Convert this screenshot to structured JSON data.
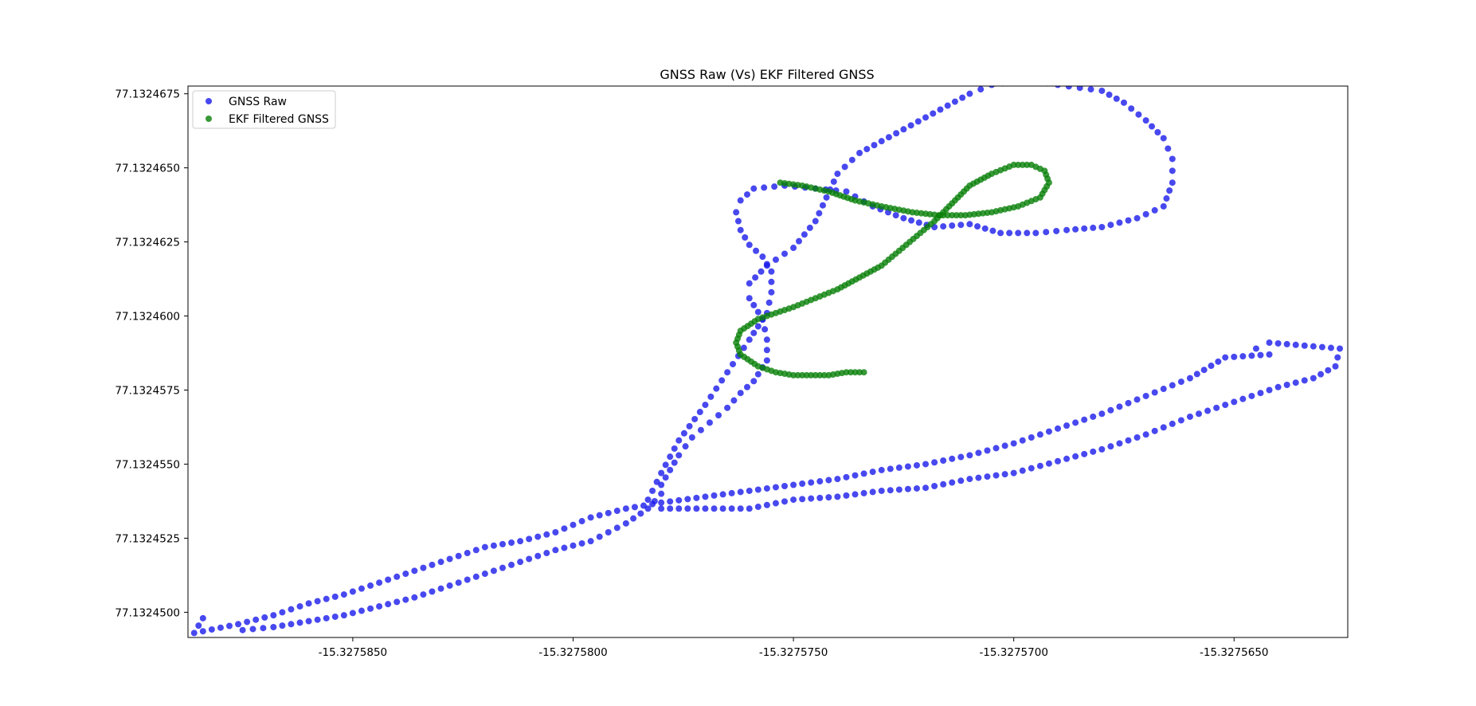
{
  "chart_data": {
    "type": "scatter",
    "title": "GNSS Raw (Vs) EKF Filtered GNSS",
    "xlabel": "",
    "ylabel": "",
    "xlim": [
      -15.32758874,
      -15.32756242
    ],
    "ylim": [
      77.13244915,
      77.13246776
    ],
    "x_ticks": [
      -15.327585,
      -15.32758,
      -15.327575,
      -15.32757,
      -15.327565
    ],
    "x_tick_labels": [
      "-15.3275850",
      "-15.3275800",
      "-15.3275750",
      "-15.3275700",
      "-15.3275650"
    ],
    "y_ticks": [
      77.13245,
      77.1324525,
      77.132455,
      77.1324575,
      77.13246,
      77.1324625,
      77.132465,
      77.1324675
    ],
    "y_tick_labels": [
      "77.1324500",
      "77.1324525",
      "77.1324550",
      "77.1324575",
      "77.1324600",
      "77.1324625",
      "77.1324650",
      "77.1324675"
    ],
    "grid": false,
    "legend_position": "top-left",
    "series": [
      {
        "name": "GNSS Raw",
        "color": "#1a1aeb",
        "x": [
          -15.3275875,
          -15.3275868,
          -15.327586,
          -15.3275852,
          -15.3275844,
          -15.3275836,
          -15.3275828,
          -15.327582,
          -15.3275812,
          -15.3275804,
          -15.3275796,
          -15.3275788,
          -15.3275783,
          -15.327578,
          -15.327578,
          -15.3275778,
          -15.3275776,
          -15.3275773,
          -15.3275769,
          -15.3275765,
          -15.3275762,
          -15.3275759,
          -15.3275756,
          -15.3275756,
          -15.3275757,
          -15.327576,
          -15.327576,
          -15.3275756,
          -15.327575,
          -15.3275745,
          -15.327574,
          -15.3275735,
          -15.327573,
          -15.3275725,
          -15.327572,
          -15.3275715,
          -15.327571,
          -15.3275705,
          -15.32757,
          -15.3275695,
          -15.327569,
          -15.3275685,
          -15.327568,
          -15.3275675,
          -15.327567,
          -15.3275666,
          -15.3275664,
          -15.3275664,
          -15.3275666,
          -15.3275672,
          -15.327568,
          -15.3275688,
          -15.3275695,
          -15.3275703,
          -15.327571,
          -15.3275718,
          -15.3275725,
          -15.3275732,
          -15.3275738,
          -15.3275745,
          -15.3275752,
          -15.3275759,
          -15.3275762,
          -15.3275763,
          -15.3275762,
          -15.327576,
          -15.3275757,
          -15.3275755,
          -15.3275755,
          -15.3275756,
          -15.327576,
          -15.3275765,
          -15.327577,
          -15.3275776,
          -15.327578,
          -15.3275783,
          -15.327578,
          -15.327577,
          -15.327576,
          -15.327575,
          -15.327574,
          -15.327573,
          -15.327572,
          -15.327571,
          -15.32757,
          -15.327569,
          -15.327568,
          -15.327567,
          -15.327566,
          -15.327565,
          -15.327564,
          -15.3275632,
          -15.3275627,
          -15.3275626,
          -15.3275634,
          -15.3275642,
          -15.3275645,
          -15.3275642,
          -15.3275652,
          -15.327566,
          -15.327567,
          -15.327568,
          -15.327569,
          -15.32757,
          -15.327571,
          -15.327572,
          -15.327573,
          -15.327574,
          -15.327575,
          -15.327576,
          -15.327577,
          -15.327578,
          -15.3275788,
          -15.3275796,
          -15.3275804,
          -15.3275812,
          -15.327582,
          -15.3275828,
          -15.3275836,
          -15.3275844,
          -15.3275852,
          -15.327586,
          -15.3275868,
          -15.3275876,
          -15.3275886,
          -15.3275884
        ],
        "y": [
          77.1324494,
          77.1324495,
          77.1324497,
          77.1324499,
          77.1324502,
          77.1324505,
          77.1324509,
          77.1324513,
          77.1324517,
          77.1324521,
          77.1324524,
          77.132453,
          77.1324535,
          77.132454,
          77.1324543,
          77.1324548,
          77.1324553,
          77.1324559,
          77.1324564,
          77.1324569,
          77.1324574,
          77.1324578,
          77.1324585,
          77.1324592,
          77.1324599,
          77.1324606,
          77.1324611,
          77.1324617,
          77.1324623,
          77.1324632,
          77.1324648,
          77.1324655,
          77.1324659,
          77.1324663,
          77.1324667,
          77.1324671,
          77.1324675,
          77.1324678,
          77.1324679,
          77.1324679,
          77.1324678,
          77.1324677,
          77.1324676,
          77.1324672,
          77.1324666,
          77.132466,
          77.1324653,
          77.1324645,
          77.1324637,
          77.1324633,
          77.132463,
          77.1324629,
          77.1324628,
          77.1324628,
          77.1324631,
          77.132463,
          77.1324633,
          77.1324637,
          77.1324642,
          77.1324643,
          77.1324644,
          77.1324643,
          77.1324639,
          77.1324635,
          77.1324629,
          77.1324624,
          77.132462,
          77.1324615,
          77.1324608,
          77.1324601,
          77.1324592,
          77.1324581,
          77.132457,
          77.1324558,
          77.1324547,
          77.1324538,
          77.1324535,
          77.1324535,
          77.1324535,
          77.1324538,
          77.1324539,
          77.1324541,
          77.1324542,
          77.1324545,
          77.1324547,
          77.1324551,
          77.1324555,
          77.132456,
          77.1324566,
          77.1324571,
          77.1324576,
          77.1324579,
          77.1324583,
          77.1324589,
          77.132459,
          77.1324591,
          77.1324589,
          77.1324587,
          77.1324586,
          77.1324579,
          77.1324573,
          77.1324567,
          77.1324562,
          77.1324557,
          77.1324553,
          77.132455,
          77.1324548,
          77.1324545,
          77.1324543,
          77.1324541,
          77.1324539,
          77.1324537,
          77.1324535,
          77.1324532,
          77.1324527,
          77.1324524,
          77.1324522,
          77.1324518,
          77.1324514,
          77.132451,
          77.1324506,
          77.1324503,
          77.1324499,
          77.1324496,
          77.1324493,
          77.1324498
        ]
      },
      {
        "name": "EKF Filtered GNSS",
        "color": "#078007",
        "x": [
          -15.3275734,
          -15.3275738,
          -15.3275742,
          -15.3275746,
          -15.327575,
          -15.3275754,
          -15.3275758,
          -15.3275762,
          -15.3275763,
          -15.3275762,
          -15.3275758,
          -15.3275754,
          -15.327575,
          -15.3275745,
          -15.327574,
          -15.3275735,
          -15.327573,
          -15.3275726,
          -15.3275722,
          -15.3275718,
          -15.3275714,
          -15.327571,
          -15.3275705,
          -15.32757,
          -15.3275696,
          -15.3275693,
          -15.3275692,
          -15.3275694,
          -15.3275699,
          -15.3275705,
          -15.3275711,
          -15.3275717,
          -15.3275723,
          -15.327573,
          -15.3275736,
          -15.3275742,
          -15.3275748,
          -15.3275753
        ],
        "y": [
          77.1324581,
          77.1324581,
          77.132458,
          77.132458,
          77.132458,
          77.1324581,
          77.1324583,
          77.1324587,
          77.1324591,
          77.1324595,
          77.1324599,
          77.1324601,
          77.1324603,
          77.1324606,
          77.1324609,
          77.1324613,
          77.1324617,
          77.1324622,
          77.1324627,
          77.1324632,
          77.1324638,
          77.1324644,
          77.1324648,
          77.1324651,
          77.1324651,
          77.1324649,
          77.1324645,
          77.132464,
          77.1324637,
          77.1324635,
          77.1324634,
          77.1324634,
          77.1324635,
          77.1324637,
          77.1324639,
          77.1324642,
          77.1324644,
          77.1324645
        ]
      }
    ]
  }
}
